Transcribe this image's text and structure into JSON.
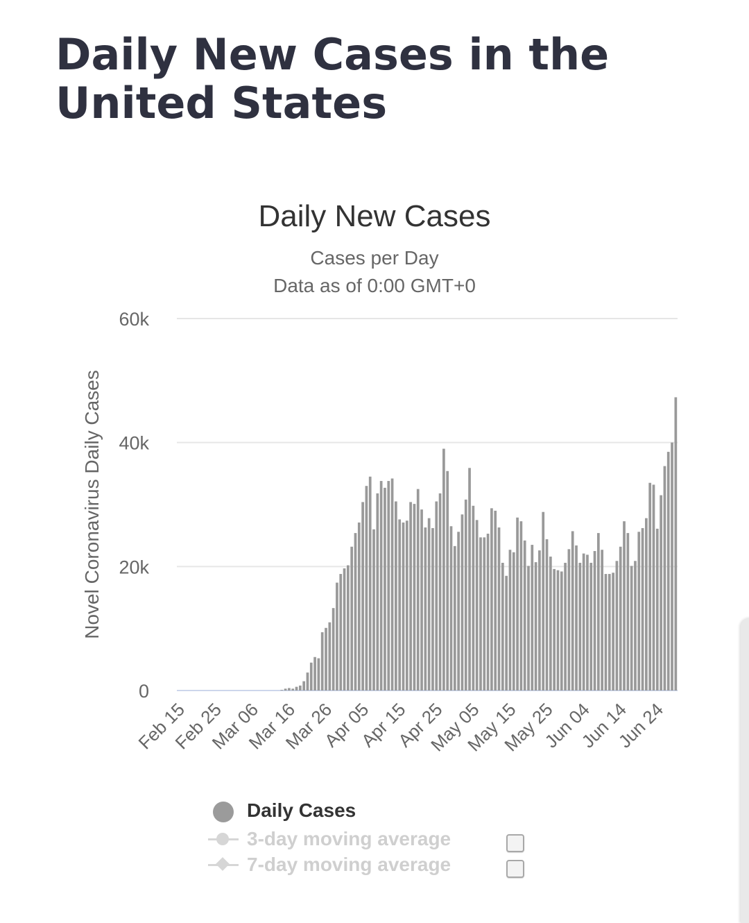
{
  "page": {
    "title": "Daily New Cases in the United States"
  },
  "chart_data": {
    "type": "bar",
    "title": "Daily New Cases",
    "subtitle_1": "Cases per Day",
    "subtitle_2": "Data as of 0:00 GMT+0",
    "ylabel": "Novel Coronavirus Daily Cases",
    "xlabel": "",
    "ylim": [
      0,
      60000
    ],
    "y_ticks": [
      {
        "value": 0,
        "label": "0"
      },
      {
        "value": 20000,
        "label": "20k"
      },
      {
        "value": 40000,
        "label": "40k"
      },
      {
        "value": 60000,
        "label": "60k"
      }
    ],
    "start_date": "Feb 15",
    "x_tick_labels": [
      "Feb 15",
      "Feb 25",
      "Mar 06",
      "Mar 16",
      "Mar 26",
      "Apr 05",
      "Apr 15",
      "Apr 25",
      "May 05",
      "May 15",
      "May 25",
      "Jun 04",
      "Jun 14",
      "Jun 24"
    ],
    "grid": true,
    "bar_color": "#999999",
    "series": [
      {
        "name": "Daily Cases",
        "values": [
          0,
          0,
          0,
          0,
          0,
          0,
          0,
          0,
          0,
          0,
          0,
          0,
          0,
          0,
          0,
          0,
          0,
          0,
          0,
          0,
          0,
          0,
          0,
          0,
          0,
          0,
          0,
          0,
          100,
          300,
          400,
          300,
          600,
          800,
          1500,
          2900,
          4500,
          5400,
          5200,
          9400,
          10100,
          11000,
          13300,
          17400,
          18800,
          19700,
          20200,
          23200,
          25400,
          27100,
          30400,
          33000,
          34500,
          26000,
          31800,
          33800,
          32700,
          33800,
          34200,
          30500,
          27600,
          27100,
          27400,
          30400,
          30100,
          32500,
          29200,
          26300,
          27800,
          26200,
          30500,
          31800,
          39000,
          35400,
          26500,
          23300,
          25600,
          28400,
          30800,
          35900,
          29800,
          27500,
          24700,
          24700,
          25300,
          29400,
          29000,
          26300,
          20600,
          18500,
          22700,
          22300,
          27900,
          27300,
          24200,
          20100,
          23500,
          20700,
          22600,
          28800,
          24400,
          21600,
          19600,
          19400,
          19200,
          20600,
          22800,
          25700,
          23400,
          20600,
          22100,
          21900,
          20600,
          22500,
          25400,
          22700,
          18800,
          18800,
          19000,
          20900,
          23200,
          27300,
          25400,
          20100,
          20900,
          25600,
          26200,
          27800,
          33500,
          33200,
          26100,
          31500,
          36200,
          38500,
          40000,
          47300
        ]
      }
    ],
    "legend": [
      {
        "label": "Daily Cases",
        "active": true
      },
      {
        "label": "3-day moving average",
        "active": false
      },
      {
        "label": "7-day moving average",
        "active": false
      }
    ]
  }
}
